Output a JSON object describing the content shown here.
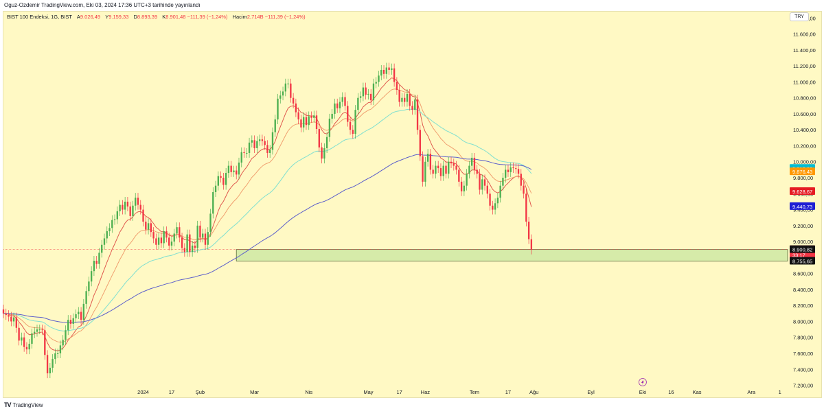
{
  "published_by": "Oguz-Ozdemir TradingView.com, Eki 03, 2024 17:36 UTC+3 tarihinde yayınlandı",
  "legend": {
    "symbol": "BIST 100 Endeksi, 1G, BIST",
    "open_label": "A",
    "open": "9.026,49",
    "high_label": "Y",
    "high": "9.159,33",
    "low_label": "D",
    "low": "8.893,39",
    "close_label": "K",
    "close": "8.901,48",
    "change": "−111,39 (−1,24%)",
    "volume_label": "Hacim",
    "volume": "2,714B",
    "volume_change": "−111,39 (−1,24%)"
  },
  "currency": "TRY",
  "footer": {
    "logo": "TV",
    "brand": "TradingView"
  },
  "colors": {
    "background": "#fff9c4",
    "up": "#4caf50",
    "down": "#f23645",
    "ema_short": "#e05a4f",
    "ema_mid": "#f0a070",
    "ema_long": "#7fdfd0",
    "ema_200": "#5c5ecb",
    "support_zone": "#c8e6a0"
  },
  "chart_data": {
    "type": "candlestick",
    "title": "BIST 100 Endeksi, 1G, BIST",
    "x_ticks": [
      "2024",
      "17",
      "Şub",
      "Mar",
      "Nis",
      "May",
      "17",
      "Haz",
      "Tem",
      "17",
      "Ağu",
      "Eyl",
      "Eki",
      "16",
      "Kas",
      "Ara",
      "1"
    ],
    "x_tick_index": [
      54,
      65,
      76,
      97,
      118,
      141,
      153,
      163,
      182,
      195,
      205,
      227,
      247,
      258,
      268,
      289,
      300
    ],
    "y_ticks": [
      "11.800,00",
      "11.600,00",
      "11.400,00",
      "11.200,00",
      "11.000,00",
      "10.800,00",
      "10.600,00",
      "10.400,00",
      "10.200,00",
      "10.000,00",
      "9.800,00",
      "9.600,00",
      "9.400,00",
      "9.200,00",
      "9.000,00",
      "8.800,00",
      "8.600,00",
      "8.400,00",
      "8.200,00",
      "8.000,00",
      "7.800,00",
      "7.600,00",
      "7.400,00",
      "7.200,00"
    ],
    "y_range": [
      7050,
      11880
    ],
    "x_range": [
      0,
      303
    ],
    "series_close": [
      8100,
      8080,
      8060,
      8000,
      8050,
      7920,
      7760,
      7800,
      7680,
      7650,
      7720,
      7850,
      7870,
      7900,
      7900,
      7890,
      7580,
      7350,
      7420,
      7530,
      7600,
      7600,
      7700,
      7770,
      7890,
      8020,
      7970,
      8040,
      8090,
      8120,
      8020,
      8220,
      8380,
      8500,
      8630,
      8760,
      8720,
      8860,
      8960,
      9040,
      9130,
      9170,
      9270,
      9280,
      9380,
      9460,
      9400,
      9500,
      9440,
      9320,
      9450,
      9550,
      9460,
      9400,
      9250,
      9150,
      9230,
      9120,
      9040,
      8960,
      9050,
      8980,
      9130,
      9050,
      8950,
      9000,
      9100,
      9180,
      9050,
      8920,
      8870,
      9090,
      8870,
      8950,
      8920,
      9200,
      9050,
      9100,
      8960,
      9120,
      9350,
      9620,
      9700,
      9820,
      9800,
      9710,
      9860,
      9950,
      9870,
      9890,
      9840,
      9990,
      10120,
      10110,
      10110,
      10240,
      10270,
      10170,
      10260,
      10280,
      10260,
      10210,
      10110,
      10150,
      10370,
      10530,
      10790,
      10830,
      10880,
      10980,
      10980,
      10800,
      10730,
      10620,
      10530,
      10430,
      10560,
      10460,
      10570,
      10550,
      10580,
      10410,
      10180,
      10040,
      10170,
      10310,
      10540,
      10600,
      10730,
      10670,
      10750,
      10810,
      10700,
      10500,
      10400,
      10350,
      10650,
      10800,
      10820,
      10930,
      10840,
      10850,
      10770,
      10980,
      11000,
      11080,
      11150,
      11100,
      11180,
      11150,
      11170,
      11000,
      10900,
      10750,
      10800,
      10750,
      10850,
      10700,
      10650,
      10780,
      10400,
      10070,
      9750,
      10000,
      10100,
      9900,
      9850,
      9950,
      9920,
      9820,
      9950,
      9850,
      10000,
      9980,
      9950,
      9900,
      9750,
      9630,
      9700,
      9850,
      9950,
      10050,
      9900,
      9850,
      9650,
      9780,
      9700,
      9600,
      9450,
      9400,
      9480,
      9550,
      9700,
      9800,
      9900,
      9870,
      9930,
      9920,
      9910,
      9850,
      9700,
      9600,
      9250,
      9030,
      8900
    ],
    "series_open": [
      8150,
      8100,
      8080,
      8060,
      8000,
      8050,
      7920,
      7760,
      7800,
      7680,
      7650,
      7720,
      7850,
      7870,
      7900,
      7900,
      7890,
      7580,
      7350,
      7420,
      7530,
      7600,
      7600,
      7700,
      7770,
      7890,
      8020,
      7970,
      8040,
      8090,
      8120,
      8020,
      8220,
      8380,
      8500,
      8630,
      8760,
      8720,
      8860,
      8960,
      9040,
      9130,
      9170,
      9270,
      9280,
      9380,
      9460,
      9400,
      9500,
      9440,
      9320,
      9450,
      9550,
      9460,
      9400,
      9250,
      9150,
      9230,
      9120,
      9040,
      8960,
      9050,
      8980,
      9130,
      9050,
      8950,
      9000,
      9100,
      9180,
      9050,
      8920,
      8870,
      9090,
      8870,
      8950,
      8920,
      9200,
      9050,
      9100,
      8960,
      9120,
      9350,
      9620,
      9700,
      9820,
      9800,
      9710,
      9860,
      9950,
      9870,
      9890,
      9840,
      9990,
      10120,
      10110,
      10110,
      10240,
      10270,
      10170,
      10260,
      10280,
      10260,
      10210,
      10110,
      10150,
      10370,
      10530,
      10790,
      10830,
      10880,
      10980,
      10980,
      10800,
      10730,
      10620,
      10530,
      10430,
      10560,
      10460,
      10570,
      10550,
      10580,
      10410,
      10180,
      10040,
      10170,
      10310,
      10540,
      10600,
      10730,
      10670,
      10750,
      10810,
      10700,
      10500,
      10400,
      10350,
      10650,
      10800,
      10820,
      10930,
      10840,
      10850,
      10770,
      10980,
      11000,
      11080,
      11150,
      11100,
      11180,
      11150,
      11170,
      11000,
      10900,
      10750,
      10800,
      10750,
      10850,
      10700,
      10650,
      10780,
      10400,
      10070,
      9750,
      10000,
      10100,
      9900,
      9850,
      9950,
      9920,
      9820,
      9950,
      9850,
      10000,
      9980,
      9950,
      9900,
      9750,
      9630,
      9700,
      9850,
      9950,
      10050,
      9900,
      9850,
      9650,
      9780,
      9700,
      9600,
      9450,
      9400,
      9480,
      9550,
      9700,
      9800,
      9900,
      9870,
      9930,
      9920,
      9910,
      9850,
      9700,
      9600,
      9250,
      9030
    ],
    "ema_labels": [
      "9.918,06",
      "9.876,43",
      "9.628,67",
      "9.440,73"
    ],
    "ema_values": [
      9918.06,
      9876.43,
      9628.67,
      9440.73
    ],
    "last_price": "8.901,48",
    "last_price_value": 8901.48,
    "countdown": "33:17",
    "zone_top_label": "8.900,82",
    "zone_top_value": 8900.82,
    "zone_bottom_label": "8.755,65",
    "zone_bottom_value": 8755.65,
    "zone_start_index": 90,
    "current_marker_index": 247
  }
}
